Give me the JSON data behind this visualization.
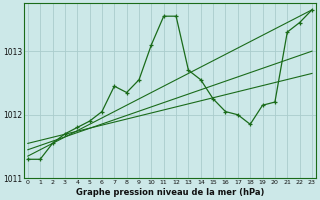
{
  "title": "Graphe pression niveau de la mer (hPa)",
  "bg_color": "#cce8e8",
  "grid_color": "#aacccc",
  "line_color": "#1a6b1a",
  "x_values": [
    0,
    1,
    2,
    3,
    4,
    5,
    6,
    7,
    8,
    9,
    10,
    11,
    12,
    13,
    14,
    15,
    16,
    17,
    18,
    19,
    20,
    21,
    22,
    23
  ],
  "y_main": [
    1011.3,
    1011.3,
    1011.55,
    1011.7,
    1011.8,
    1011.9,
    1012.05,
    1012.45,
    1012.35,
    1012.55,
    1013.1,
    1013.55,
    1013.55,
    1012.7,
    1012.55,
    1012.25,
    1012.05,
    1012.0,
    1011.85,
    1012.15,
    1012.2,
    1013.3,
    1013.45,
    1013.65
  ],
  "trend1": [
    1011.35,
    1013.65
  ],
  "trend2": [
    1011.45,
    1013.0
  ],
  "trend3": [
    1011.55,
    1012.65
  ],
  "ylim": [
    1011.0,
    1013.75
  ],
  "yticks": [
    1011,
    1012,
    1013
  ],
  "xlim": [
    -0.3,
    23.3
  ],
  "xticks": [
    0,
    1,
    2,
    3,
    4,
    5,
    6,
    7,
    8,
    9,
    10,
    11,
    12,
    13,
    14,
    15,
    16,
    17,
    18,
    19,
    20,
    21,
    22,
    23
  ]
}
